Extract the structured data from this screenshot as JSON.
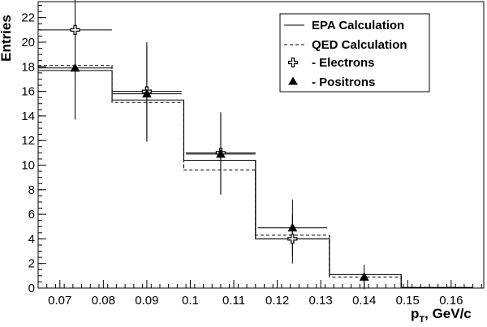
{
  "chart_data": {
    "type": "histogram",
    "xlabel_main": "p",
    "xlabel_sub": "T",
    "xlabel_rest": ", GeV/c",
    "ylabel": "Entries",
    "xlim": [
      0.065,
      0.1675
    ],
    "ylim": [
      0,
      23.3
    ],
    "x_ticks": [
      {
        "value": 0.07,
        "label": "0.07"
      },
      {
        "value": 0.08,
        "label": "0.08"
      },
      {
        "value": 0.09,
        "label": "0.09"
      },
      {
        "value": 0.1,
        "label": "0.1"
      },
      {
        "value": 0.11,
        "label": "0.11"
      },
      {
        "value": 0.12,
        "label": "0.12"
      },
      {
        "value": 0.13,
        "label": "0.13"
      },
      {
        "value": 0.14,
        "label": "0.14"
      },
      {
        "value": 0.15,
        "label": "0.15"
      },
      {
        "value": 0.16,
        "label": "0.16"
      }
    ],
    "y_ticks": [
      {
        "value": 0,
        "label": "0"
      },
      {
        "value": 2,
        "label": "2"
      },
      {
        "value": 4,
        "label": "4"
      },
      {
        "value": 6,
        "label": "6"
      },
      {
        "value": 8,
        "label": "8"
      },
      {
        "value": 10,
        "label": "10"
      },
      {
        "value": 12,
        "label": "12"
      },
      {
        "value": 14,
        "label": "14"
      },
      {
        "value": 16,
        "label": "16"
      },
      {
        "value": 18,
        "label": "18"
      },
      {
        "value": 20,
        "label": "20"
      },
      {
        "value": 22,
        "label": "22"
      }
    ],
    "bin_edges": [
      0.065,
      0.082,
      0.0985,
      0.115,
      0.132,
      0.1485,
      0.165
    ],
    "series": [
      {
        "name": "EPA Calculation",
        "style": "histogram-solid",
        "values": [
          17.7,
          15.3,
          10.4,
          4.0,
          1.1,
          0.05
        ]
      },
      {
        "name": "QED Calculation",
        "style": "histogram-dashed",
        "values": [
          18.1,
          15.1,
          9.6,
          4.3,
          0.9,
          0.05
        ]
      },
      {
        "name": "- Electrons",
        "style": "open-cross",
        "points": [
          {
            "x": 0.0735,
            "y": 21.0,
            "xerr": 0.0085,
            "yerr": 4.5
          },
          {
            "x": 0.09,
            "y": 16.0,
            "xerr": 0.008,
            "yerr": 4.0
          },
          {
            "x": 0.107,
            "y": 11.0,
            "xerr": 0.008,
            "yerr": 3.3
          },
          {
            "x": 0.1235,
            "y": 4.0,
            "xerr": 0.008,
            "yerr": 2.0
          }
        ]
      },
      {
        "name": "- Positrons",
        "style": "filled-triangle",
        "points": [
          {
            "x": 0.0735,
            "y": 17.9,
            "xerr": 0.0085,
            "yerr": 4.2
          },
          {
            "x": 0.09,
            "y": 15.8,
            "xerr": 0.008,
            "yerr": 3.9
          },
          {
            "x": 0.107,
            "y": 10.9,
            "xerr": 0.008,
            "yerr": 3.3
          },
          {
            "x": 0.1235,
            "y": 4.9,
            "xerr": 0.008,
            "yerr": 2.3
          },
          {
            "x": 0.14,
            "y": 0.9,
            "xerr": 0.0,
            "yerr": 1.0
          }
        ]
      }
    ],
    "legend": [
      {
        "label": "EPA Calculation",
        "symbol": "solid-line"
      },
      {
        "label": "QED Calculation",
        "symbol": "dashed-line"
      },
      {
        "label": "- Electrons",
        "symbol": "open-cross"
      },
      {
        "label": "- Positrons",
        "symbol": "filled-triangle"
      }
    ],
    "legend_position": "top-right",
    "grid": false
  }
}
